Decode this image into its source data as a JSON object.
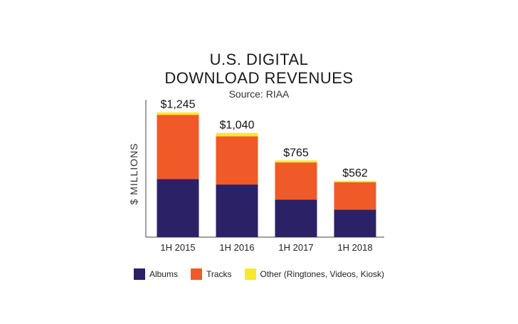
{
  "chart_data": {
    "type": "bar",
    "stacked": true,
    "title": "U.S. DIGITAL",
    "title_line2": "DOWNLOAD REVENUES",
    "subtitle": "Source: RIAA",
    "ylabel": "$ MILLIONS",
    "xlabel": "",
    "categories": [
      "1H 2015",
      "1H 2016",
      "1H 2017",
      "1H 2018"
    ],
    "totals_labels": [
      "$1,245",
      "$1,040",
      "$765",
      "$562"
    ],
    "ylim": [
      0,
      1300
    ],
    "grid": false,
    "legend_position": "bottom",
    "series": [
      {
        "name": "Albums",
        "color": "#2b2166",
        "values": [
          580,
          525,
          375,
          275
        ]
      },
      {
        "name": "Tracks",
        "color": "#f05a28",
        "values": [
          640,
          480,
          370,
          272
        ]
      },
      {
        "name": "Other (Ringtones, Videos, Kiosk)",
        "color": "#f7ea2a",
        "values": [
          25,
          35,
          20,
          15
        ]
      }
    ]
  }
}
